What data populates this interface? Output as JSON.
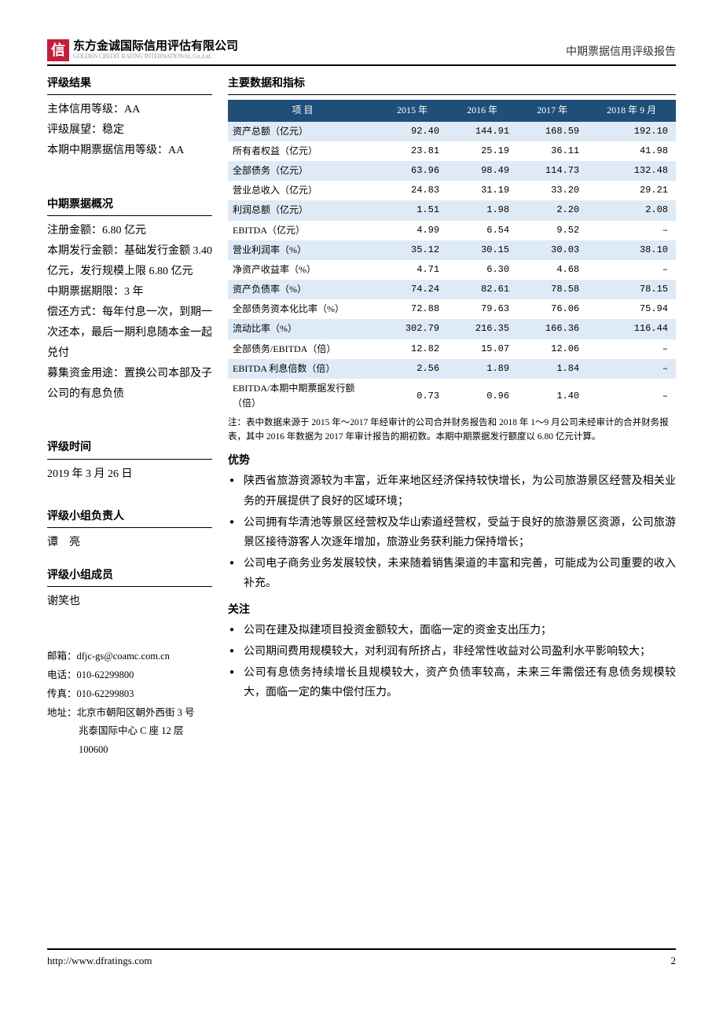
{
  "header": {
    "logo_char": "信",
    "company_zh": "东方金诚国际信用评估有限公司",
    "company_en": "GOLDEN CREDIT RATING INTERNATIONAL Co.,Ltd.",
    "doc_type": "中期票据信用评级报告"
  },
  "left": {
    "rating_result": {
      "title": "评级结果",
      "lines": [
        "主体信用等级：AA",
        "评级展望：稳定",
        "本期中期票据信用等级：AA"
      ]
    },
    "mtn_overview": {
      "title": "中期票据概况",
      "text": "注册金额：6.80 亿元\n本期发行金额：基础发行金额 3.40 亿元，发行规模上限 6.80 亿元\n中期票据期限：3 年\n偿还方式：每年付息一次，到期一次还本，最后一期利息随本金一起兑付\n募集资金用途：置换公司本部及子公司的有息负债"
    },
    "rating_time": {
      "title": "评级时间",
      "text": "2019 年 3 月 26 日"
    },
    "lead": {
      "title": "评级小组负责人",
      "text": "谭　亮"
    },
    "member": {
      "title": "评级小组成员",
      "text": "谢笑也"
    },
    "contact": {
      "email_label": "邮箱：",
      "email": "dfjc-gs@coamc.com.cn",
      "phone_label": "电话：",
      "phone": "010-62299800",
      "fax_label": "传真：",
      "fax": "010-62299803",
      "addr_label": "地址：",
      "addr_l1": "北京市朝阳区朝外西街 3 号",
      "addr_l2": "兆泰国际中心 C 座 12 层",
      "addr_l3": "100600"
    }
  },
  "right": {
    "title": "主要数据和指标",
    "table": {
      "header_item": "项   目",
      "columns": [
        "2015 年",
        "2016 年",
        "2017 年",
        "2018 年 9 月"
      ],
      "rows": [
        {
          "label": "资产总额（亿元）",
          "cells": [
            "92.40",
            "144.91",
            "168.59",
            "192.10"
          ]
        },
        {
          "label": "所有者权益（亿元）",
          "cells": [
            "23.81",
            "25.19",
            "36.11",
            "41.98"
          ]
        },
        {
          "label": "全部债务（亿元）",
          "cells": [
            "63.96",
            "98.49",
            "114.73",
            "132.48"
          ]
        },
        {
          "label": "营业总收入（亿元）",
          "cells": [
            "24.83",
            "31.19",
            "33.20",
            "29.21"
          ]
        },
        {
          "label": "利润总额（亿元）",
          "cells": [
            "1.51",
            "1.98",
            "2.20",
            "2.08"
          ]
        },
        {
          "label": "EBITDA（亿元）",
          "cells": [
            "4.99",
            "6.54",
            "9.52",
            "–"
          ]
        },
        {
          "label": "营业利润率（%）",
          "cells": [
            "35.12",
            "30.15",
            "30.03",
            "38.10"
          ]
        },
        {
          "label": "净资产收益率（%）",
          "cells": [
            "4.71",
            "6.30",
            "4.68",
            "–"
          ]
        },
        {
          "label": "资产负债率（%）",
          "cells": [
            "74.24",
            "82.61",
            "78.58",
            "78.15"
          ]
        },
        {
          "label": "全部债务资本化比率（%）",
          "cells": [
            "72.88",
            "79.63",
            "76.06",
            "75.94"
          ]
        },
        {
          "label": "流动比率（%）",
          "cells": [
            "302.79",
            "216.35",
            "166.36",
            "116.44"
          ]
        },
        {
          "label": "全部债务/EBITDA（倍）",
          "cells": [
            "12.82",
            "15.07",
            "12.06",
            "–"
          ]
        },
        {
          "label": "EBITDA 利息倍数（倍）",
          "cells": [
            "2.56",
            "1.89",
            "1.84",
            "–"
          ]
        },
        {
          "label": "EBITDA/本期中期票据发行额（倍）",
          "cells": [
            "0.73",
            "0.96",
            "1.40",
            "–"
          ]
        }
      ],
      "note": "注：表中数据来源于 2015 年～2017 年经审计的公司合并财务报告和 2018 年 1～9 月公司未经审计的合并财务报表，其中 2016 年数据为 2017 年审计报告的期初数。本期中期票据发行额度以 6.80 亿元计算。"
    },
    "advantages": {
      "title": "优势",
      "items": [
        "陕西省旅游资源较为丰富，近年来地区经济保持较快增长，为公司旅游景区经营及相关业务的开展提供了良好的区域环境；",
        "公司拥有华清池等景区经营权及华山索道经营权，受益于良好的旅游景区资源，公司旅游景区接待游客人次逐年增加，旅游业务获利能力保持增长；",
        "公司电子商务业务发展较快，未来随着销售渠道的丰富和完善，可能成为公司重要的收入补充。"
      ]
    },
    "concerns": {
      "title": "关注",
      "items": [
        "公司在建及拟建项目投资金额较大，面临一定的资金支出压力；",
        "公司期间费用规模较大，对利润有所挤占，非经常性收益对公司盈利水平影响较大；",
        "公司有息债务持续增长且规模较大，资产负债率较高，未来三年需偿还有息债务规模较大，面临一定的集中偿付压力。"
      ]
    }
  },
  "footer": {
    "url": "http://www.dfratings.com",
    "page": "2"
  },
  "colors": {
    "table_header_bg": "#1f4e79",
    "table_row_alt_bg": "#deeaf6",
    "logo_bg": "#c41e3a"
  }
}
